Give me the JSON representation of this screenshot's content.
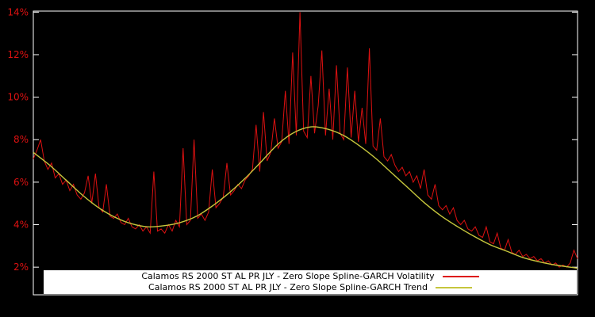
{
  "chart_data": {
    "type": "line",
    "title": "",
    "xlabel": "",
    "ylabel": "",
    "grid": false,
    "legend_position": "bottom-center",
    "ylim": [
      0.7,
      14.05
    ],
    "y_ticks": [
      {
        "value": 2,
        "label": "2%"
      },
      {
        "value": 4,
        "label": "4%"
      },
      {
        "value": 6,
        "label": "6%"
      },
      {
        "value": 8,
        "label": "8%"
      },
      {
        "value": 10,
        "label": "10%"
      },
      {
        "value": 12,
        "label": "12%"
      },
      {
        "value": 14,
        "label": "14%"
      }
    ],
    "colors": {
      "background": "#000000",
      "frame": "#ffffff",
      "axis_labels": "#dd1111",
      "volatility": "#dd1111",
      "trend": "#c6c63c"
    },
    "series": [
      {
        "name": "Calamos RS 2000 ST AL PR JLY - Zero Slope Spline-GARCH Volatility",
        "color": "#dd1111",
        "x_start": 0,
        "x_end": 1,
        "values": [
          7.1,
          7.5,
          8.0,
          7.0,
          6.6,
          6.9,
          6.2,
          6.4,
          5.9,
          6.1,
          5.6,
          5.9,
          5.4,
          5.2,
          5.5,
          6.3,
          5.0,
          6.4,
          4.8,
          4.6,
          5.9,
          4.4,
          4.3,
          4.5,
          4.1,
          4.0,
          4.3,
          3.9,
          3.8,
          4.0,
          3.7,
          3.9,
          3.6,
          6.5,
          3.7,
          3.8,
          3.6,
          4.0,
          3.7,
          4.2,
          3.9,
          7.6,
          4.0,
          4.2,
          8.0,
          4.3,
          4.5,
          4.2,
          4.6,
          6.6,
          4.8,
          5.0,
          5.3,
          6.9,
          5.4,
          5.6,
          5.9,
          5.7,
          6.1,
          6.3,
          6.6,
          8.7,
          6.5,
          9.3,
          7.0,
          7.4,
          9.0,
          7.6,
          7.9,
          10.3,
          7.8,
          12.1,
          8.2,
          14.0,
          8.4,
          8.1,
          11.0,
          8.3,
          9.6,
          12.2,
          8.2,
          10.4,
          8.0,
          11.5,
          8.3,
          8.0,
          11.4,
          8.1,
          10.3,
          7.9,
          9.5,
          7.8,
          12.3,
          7.7,
          7.5,
          9.0,
          7.2,
          7.0,
          7.3,
          6.8,
          6.5,
          6.7,
          6.3,
          6.5,
          6.0,
          6.3,
          5.7,
          6.6,
          5.4,
          5.2,
          5.9,
          4.9,
          4.7,
          4.9,
          4.5,
          4.8,
          4.2,
          4.0,
          4.2,
          3.8,
          3.7,
          3.9,
          3.5,
          3.4,
          3.9,
          3.2,
          3.1,
          3.6,
          2.9,
          2.8,
          3.3,
          2.7,
          2.6,
          2.8,
          2.5,
          2.6,
          2.4,
          2.5,
          2.3,
          2.4,
          2.2,
          2.3,
          2.1,
          2.2,
          2.0,
          2.1,
          2.0,
          2.2,
          2.8,
          2.4
        ]
      },
      {
        "name": "Calamos RS 2000 ST AL PR JLY - Zero Slope Spline-GARCH Trend",
        "color": "#c6c63c",
        "points": [
          [
            0,
            7.4
          ],
          [
            0.03,
            6.8
          ],
          [
            0.06,
            6.1
          ],
          [
            0.09,
            5.4
          ],
          [
            0.12,
            4.8
          ],
          [
            0.15,
            4.35
          ],
          [
            0.18,
            4.05
          ],
          [
            0.21,
            3.9
          ],
          [
            0.24,
            3.95
          ],
          [
            0.27,
            4.1
          ],
          [
            0.3,
            4.4
          ],
          [
            0.33,
            4.9
          ],
          [
            0.36,
            5.5
          ],
          [
            0.39,
            6.2
          ],
          [
            0.42,
            7.0
          ],
          [
            0.45,
            7.8
          ],
          [
            0.48,
            8.35
          ],
          [
            0.51,
            8.6
          ],
          [
            0.54,
            8.5
          ],
          [
            0.57,
            8.2
          ],
          [
            0.6,
            7.7
          ],
          [
            0.63,
            7.1
          ],
          [
            0.66,
            6.4
          ],
          [
            0.69,
            5.7
          ],
          [
            0.72,
            5.0
          ],
          [
            0.75,
            4.4
          ],
          [
            0.78,
            3.9
          ],
          [
            0.81,
            3.45
          ],
          [
            0.84,
            3.05
          ],
          [
            0.87,
            2.75
          ],
          [
            0.9,
            2.45
          ],
          [
            0.93,
            2.25
          ],
          [
            0.96,
            2.1
          ],
          [
            1,
            1.95
          ]
        ]
      }
    ]
  }
}
